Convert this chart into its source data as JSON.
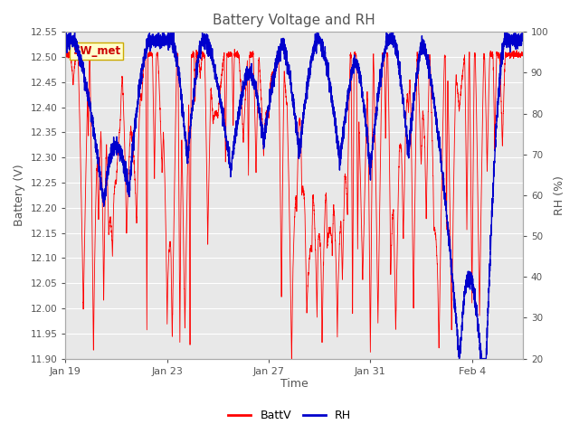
{
  "title": "Battery Voltage and RH",
  "xlabel": "Time",
  "ylabel_left": "Battery (V)",
  "ylabel_right": "RH (%)",
  "annotation": "SW_met",
  "ylim_left": [
    11.9,
    12.55
  ],
  "ylim_right": [
    20,
    100
  ],
  "yticks_left": [
    11.9,
    11.95,
    12.0,
    12.05,
    12.1,
    12.15,
    12.2,
    12.25,
    12.3,
    12.35,
    12.4,
    12.45,
    12.5,
    12.55
  ],
  "yticks_right": [
    20,
    30,
    40,
    50,
    60,
    70,
    80,
    90,
    100
  ],
  "xtick_labels": [
    "Jan 19",
    "Jan 23",
    "Jan 27",
    "Jan 31",
    "Feb 4"
  ],
  "xtick_positions": [
    0,
    4,
    8,
    12,
    16
  ],
  "xlim": [
    0,
    18
  ],
  "batt_color": "#FF0000",
  "rh_color": "#0000CC",
  "legend_labels": [
    "BattV",
    "RH"
  ],
  "annotation_bg": "#FFFFCC",
  "annotation_border": "#CCAA00",
  "bg_color": "#FFFFFF",
  "plot_bg_color": "#E8E8E8",
  "grid_color": "#FFFFFF",
  "title_color": "#555555",
  "axis_color": "#555555",
  "tick_color": "#555555",
  "figsize": [
    6.4,
    4.8
  ],
  "dpi": 100,
  "seed": 7,
  "n_points": 5000
}
